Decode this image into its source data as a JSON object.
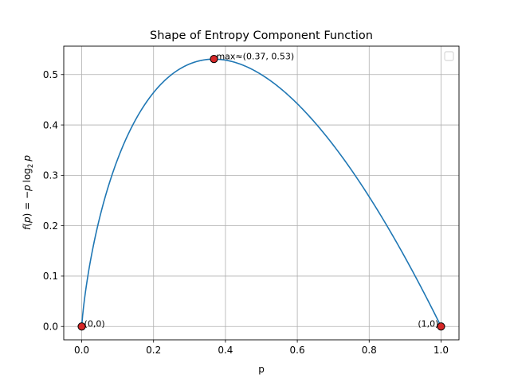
{
  "chart_data": {
    "type": "line",
    "title": "Shape of Entropy Component Function",
    "xlabel": "p",
    "ylabel": {
      "f": "f",
      "open_paren": "(",
      "p1": "p",
      "close_eq": ") = −",
      "p2": "p",
      "log": "log",
      "base": "2",
      "p3": "p"
    },
    "xlim": [
      -0.05,
      1.05
    ],
    "ylim": [
      -0.0265,
      0.5565
    ],
    "xticks": [
      0.0,
      0.2,
      0.4,
      0.6,
      0.8,
      1.0
    ],
    "xtick_labels": [
      "0.0",
      "0.2",
      "0.4",
      "0.6",
      "0.8",
      "1.0"
    ],
    "yticks": [
      0.0,
      0.1,
      0.2,
      0.3,
      0.4,
      0.5
    ],
    "ytick_labels": [
      "0.0",
      "0.1",
      "0.2",
      "0.3",
      "0.4",
      "0.5"
    ],
    "grid": true,
    "legend": {
      "placement": "top-right",
      "entries": []
    },
    "series": [
      {
        "function": "-p*log2(p)",
        "color": "#1f77b4",
        "x": [
          0.0,
          0.001,
          0.005,
          0.01,
          0.02,
          0.05,
          0.1,
          0.15,
          0.2,
          0.25,
          0.3,
          0.368,
          0.4,
          0.5,
          0.6,
          0.7,
          0.8,
          0.9,
          1.0
        ],
        "y": [
          0.0,
          0.01,
          0.038,
          0.066,
          0.113,
          0.216,
          0.332,
          0.411,
          0.464,
          0.5,
          0.521,
          0.531,
          0.529,
          0.5,
          0.442,
          0.36,
          0.258,
          0.137,
          0.0
        ]
      }
    ],
    "points": [
      {
        "x": 0.0,
        "y": 0.0,
        "label": "(0,0)",
        "label_side": "right"
      },
      {
        "x": 0.368,
        "y": 0.531,
        "label": "max≈(0.37, 0.53)",
        "label_side": "right"
      },
      {
        "x": 1.0,
        "y": 0.0,
        "label": "(1,0)",
        "label_side": "left"
      }
    ],
    "marker_fill": "#d62728",
    "marker_edge": "#000000"
  }
}
